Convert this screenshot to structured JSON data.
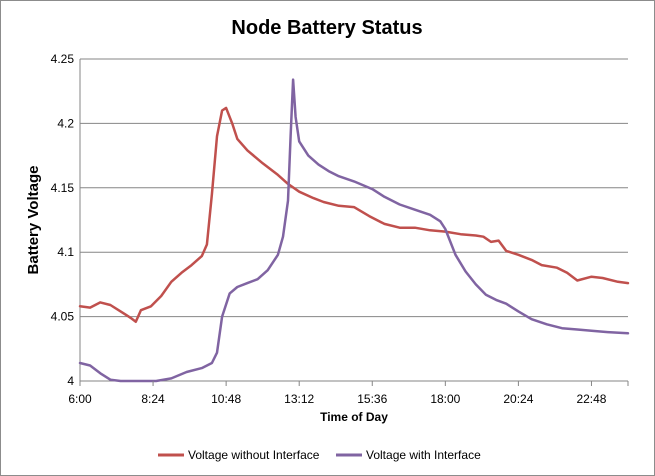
{
  "chart_data": {
    "type": "line",
    "title": "Node Battery Status",
    "xlabel": "Time of Day",
    "ylabel": "Battery Voltage",
    "ylim": [
      4,
      4.25
    ],
    "xlim": [
      "6:00",
      "24:00"
    ],
    "x_ticks": [
      "6:00",
      "8:24",
      "10:48",
      "13:12",
      "15:36",
      "18:00",
      "20:24",
      "22:48"
    ],
    "y_ticks": [
      "4",
      "4.05",
      "4.1",
      "4.15",
      "4.2",
      "4.25"
    ],
    "grid": "horizontal",
    "legend_position": "bottom",
    "series": [
      {
        "name": "Voltage without Interface",
        "color": "#c0504d",
        "points": [
          [
            "6:00",
            4.058
          ],
          [
            "6:20",
            4.057
          ],
          [
            "6:40",
            4.061
          ],
          [
            "7:00",
            4.059
          ],
          [
            "7:20",
            4.054
          ],
          [
            "7:40",
            4.049
          ],
          [
            "7:50",
            4.046
          ],
          [
            "8:00",
            4.055
          ],
          [
            "8:20",
            4.058
          ],
          [
            "8:40",
            4.066
          ],
          [
            "9:00",
            4.077
          ],
          [
            "9:20",
            4.084
          ],
          [
            "9:40",
            4.09
          ],
          [
            "10:00",
            4.097
          ],
          [
            "10:10",
            4.106
          ],
          [
            "10:20",
            4.145
          ],
          [
            "10:30",
            4.19
          ],
          [
            "10:40",
            4.21
          ],
          [
            "10:48",
            4.212
          ],
          [
            "11:00",
            4.2
          ],
          [
            "11:10",
            4.188
          ],
          [
            "11:30",
            4.179
          ],
          [
            "12:00",
            4.169
          ],
          [
            "12:30",
            4.16
          ],
          [
            "12:50",
            4.153
          ],
          [
            "13:12",
            4.147
          ],
          [
            "13:40",
            4.142
          ],
          [
            "14:00",
            4.139
          ],
          [
            "14:30",
            4.136
          ],
          [
            "15:00",
            4.135
          ],
          [
            "15:30",
            4.128
          ],
          [
            "16:00",
            4.122
          ],
          [
            "16:30",
            4.119
          ],
          [
            "17:00",
            4.119
          ],
          [
            "17:30",
            4.117
          ],
          [
            "18:00",
            4.116
          ],
          [
            "18:30",
            4.114
          ],
          [
            "19:00",
            4.113
          ],
          [
            "19:15",
            4.112
          ],
          [
            "19:30",
            4.108
          ],
          [
            "19:45",
            4.109
          ],
          [
            "20:00",
            4.101
          ],
          [
            "20:24",
            4.098
          ],
          [
            "20:50",
            4.094
          ],
          [
            "21:10",
            4.09
          ],
          [
            "21:40",
            4.088
          ],
          [
            "22:00",
            4.084
          ],
          [
            "22:20",
            4.078
          ],
          [
            "22:48",
            4.081
          ],
          [
            "23:10",
            4.08
          ],
          [
            "23:40",
            4.077
          ],
          [
            "24:00",
            4.076
          ]
        ]
      },
      {
        "name": "Voltage with Interface",
        "color": "#8064a2",
        "points": [
          [
            "6:00",
            4.014
          ],
          [
            "6:20",
            4.012
          ],
          [
            "6:40",
            4.006
          ],
          [
            "7:00",
            4.001
          ],
          [
            "7:20",
            4.0
          ],
          [
            "7:40",
            4.0
          ],
          [
            "8:00",
            4.0
          ],
          [
            "8:30",
            4.0
          ],
          [
            "9:00",
            4.002
          ],
          [
            "9:30",
            4.007
          ],
          [
            "10:00",
            4.01
          ],
          [
            "10:20",
            4.014
          ],
          [
            "10:30",
            4.022
          ],
          [
            "10:40",
            4.05
          ],
          [
            "10:55",
            4.068
          ],
          [
            "11:10",
            4.073
          ],
          [
            "11:30",
            4.076
          ],
          [
            "11:50",
            4.079
          ],
          [
            "12:10",
            4.086
          ],
          [
            "12:30",
            4.098
          ],
          [
            "12:40",
            4.112
          ],
          [
            "12:50",
            4.14
          ],
          [
            "12:55",
            4.19
          ],
          [
            "13:00",
            4.234
          ],
          [
            "13:05",
            4.205
          ],
          [
            "13:12",
            4.186
          ],
          [
            "13:30",
            4.175
          ],
          [
            "13:50",
            4.168
          ],
          [
            "14:10",
            4.163
          ],
          [
            "14:30",
            4.159
          ],
          [
            "15:00",
            4.155
          ],
          [
            "15:36",
            4.149
          ],
          [
            "16:00",
            4.143
          ],
          [
            "16:30",
            4.137
          ],
          [
            "17:00",
            4.133
          ],
          [
            "17:30",
            4.129
          ],
          [
            "17:50",
            4.124
          ],
          [
            "18:00",
            4.118
          ],
          [
            "18:20",
            4.098
          ],
          [
            "18:40",
            4.085
          ],
          [
            "19:00",
            4.075
          ],
          [
            "19:20",
            4.067
          ],
          [
            "19:40",
            4.063
          ],
          [
            "20:00",
            4.06
          ],
          [
            "20:24",
            4.054
          ],
          [
            "20:50",
            4.048
          ],
          [
            "21:20",
            4.044
          ],
          [
            "21:50",
            4.041
          ],
          [
            "22:20",
            4.04
          ],
          [
            "22:48",
            4.039
          ],
          [
            "23:20",
            4.038
          ],
          [
            "24:00",
            4.037
          ]
        ]
      }
    ]
  }
}
